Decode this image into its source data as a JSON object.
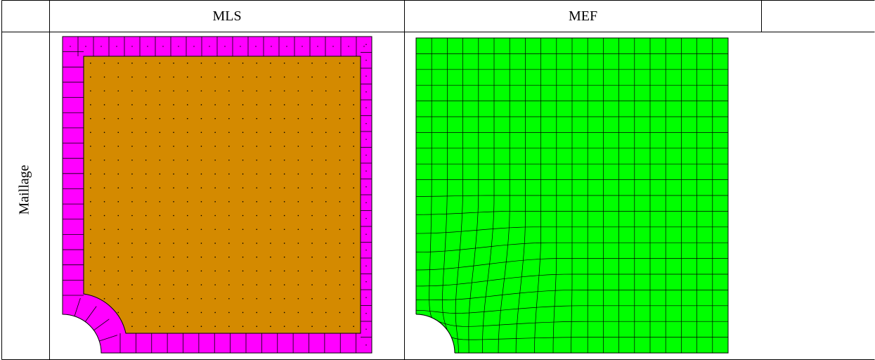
{
  "table": {
    "headers": [
      "MLS",
      "MEF"
    ],
    "row_label": "Maillage"
  },
  "colors": {
    "mls_boundary": "#ff00ff",
    "mls_interior": "#d48a00",
    "mef_mesh": "#00ff00",
    "line": "#000000"
  },
  "panels": [
    {
      "name": "mls-mesh-panel",
      "grid": 20
    },
    {
      "name": "mef-mesh-panel",
      "grid": 20
    }
  ]
}
